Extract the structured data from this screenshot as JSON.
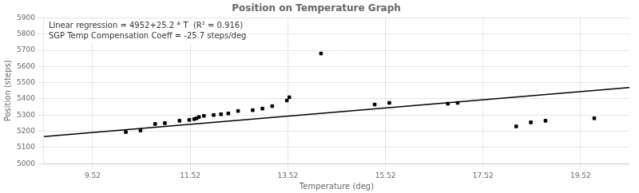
{
  "chart_data": {
    "type": "scatter",
    "title": "Position on Temperature Graph",
    "annotations": [
      "Linear regression = 4952+25.2 * T  (R² = 0.916)",
      "SGP Temp Compensation Coeff = -25.7 steps/deg"
    ],
    "x_label": "Temperature (deg)",
    "y_label": "Position (steps)",
    "xlim": [
      8.52,
      20.52
    ],
    "ylim": [
      5000,
      5900
    ],
    "xticks": [
      9.52,
      11.52,
      13.52,
      15.52,
      17.52,
      19.52
    ],
    "yticks": [
      5000,
      5100,
      5200,
      5300,
      5400,
      5500,
      5600,
      5700,
      5800,
      5900
    ],
    "grid": true,
    "series": [
      {
        "type": "scatter",
        "color": "#000000",
        "marker": "square",
        "x": [
          10.2,
          10.5,
          10.8,
          11.0,
          11.3,
          11.5,
          11.6,
          11.65,
          11.7,
          11.8,
          12.0,
          12.15,
          12.3,
          12.5,
          12.8,
          13.0,
          13.2,
          13.5,
          13.55,
          15.3,
          15.6,
          16.8,
          17.0,
          18.2,
          18.5,
          18.8,
          19.8
        ],
        "values": [
          5195,
          5205,
          5245,
          5250,
          5265,
          5270,
          5275,
          5280,
          5288,
          5295,
          5300,
          5305,
          5310,
          5325,
          5330,
          5340,
          5355,
          5390,
          5410,
          5365,
          5375,
          5370,
          5375,
          5230,
          5255,
          5265,
          5280
        ]
      },
      {
        "type": "scatter",
        "color": "#000000",
        "marker": "square",
        "x": [
          14.2
        ],
        "values": [
          5680
        ]
      },
      {
        "type": "line",
        "color": "#000000",
        "line_style": "solid",
        "x": [
          8.52,
          20.52
        ],
        "values": [
          5166.7,
          5469.4
        ]
      }
    ]
  }
}
